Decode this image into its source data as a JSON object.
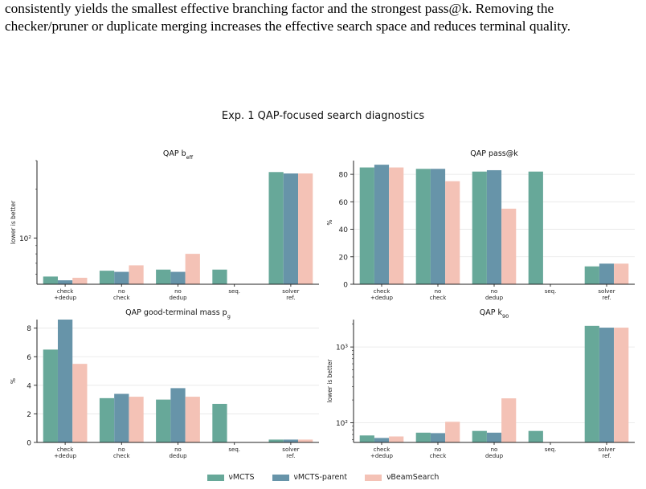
{
  "page_text": {
    "line1": "consistently yields the smallest effective branching factor and the strongest pass@k. Removing the",
    "line2": "checker/pruner or duplicate merging increases the effective search space and reduces terminal quality."
  },
  "figure": {
    "suptitle": "Exp. 1 QAP-focused search diagnostics"
  },
  "legend": [
    {
      "name": "νMCTS",
      "color": "#67a899"
    },
    {
      "name": "νMCTS-parent",
      "color": "#6794a9"
    },
    {
      "name": "νBeamSearch",
      "color": "#f4c2b6"
    }
  ],
  "chart_data": [
    {
      "type": "bar",
      "title": "QAP b_eff",
      "title_main": "QAP b",
      "title_sub": "eff",
      "ylabel": "lower is better",
      "yscale": "log",
      "ylim": [
        52,
        300
      ],
      "yticks": [
        100
      ],
      "ytick_labels": [
        "10²"
      ],
      "categories": [
        "check\n+dedup",
        "no\ncheck",
        "no\ndedup",
        "seq.",
        "solver\nref."
      ],
      "series": [
        {
          "name": "νMCTS",
          "values": [
            58,
            63,
            64,
            64,
            255
          ]
        },
        {
          "name": "νMCTS-parent",
          "values": [
            55,
            62,
            62,
            null,
            250
          ]
        },
        {
          "name": "νBeamSearch",
          "values": [
            57,
            68,
            80,
            null,
            250
          ]
        }
      ],
      "grid": false
    },
    {
      "type": "bar",
      "title": "QAP pass@k",
      "ylabel": "%",
      "yscale": "linear",
      "ylim": [
        0,
        90
      ],
      "yticks": [
        0,
        20,
        40,
        60,
        80
      ],
      "ytick_labels": [
        "0",
        "20",
        "40",
        "60",
        "80"
      ],
      "categories": [
        "check\n+dedup",
        "no\ncheck",
        "no\ndedup",
        "seq.",
        "solver\nref."
      ],
      "series": [
        {
          "name": "νMCTS",
          "values": [
            85,
            84,
            82,
            82,
            13
          ]
        },
        {
          "name": "νMCTS-parent",
          "values": [
            87,
            84,
            83,
            null,
            15
          ]
        },
        {
          "name": "νBeamSearch",
          "values": [
            85,
            75,
            55,
            null,
            15
          ]
        }
      ],
      "grid": true
    },
    {
      "type": "bar",
      "title": "QAP good-terminal mass p_g",
      "title_main": "QAP good-terminal mass p",
      "title_sub": "g",
      "ylabel": "%",
      "yscale": "linear",
      "ylim": [
        0,
        8.6
      ],
      "yticks": [
        0,
        2,
        4,
        6,
        8
      ],
      "ytick_labels": [
        "0",
        "2",
        "4",
        "6",
        "8"
      ],
      "categories": [
        "check\n+dedup",
        "no\ncheck",
        "no\ndedup",
        "seq.",
        "solver\nref."
      ],
      "series": [
        {
          "name": "νMCTS",
          "values": [
            6.5,
            3.1,
            3.0,
            2.7,
            0.2
          ]
        },
        {
          "name": "νMCTS-parent",
          "values": [
            8.6,
            3.4,
            3.8,
            null,
            0.2
          ]
        },
        {
          "name": "νBeamSearch",
          "values": [
            5.5,
            3.2,
            3.2,
            null,
            0.2
          ]
        }
      ],
      "grid": true
    },
    {
      "type": "bar",
      "title": "QAP k_90",
      "title_main": "QAP k",
      "title_sub": "90",
      "ylabel": "lower is better",
      "yscale": "log",
      "ylim": [
        55,
        2300
      ],
      "yticks": [
        100,
        1000
      ],
      "ytick_labels": [
        "10²",
        "10³"
      ],
      "categories": [
        "check\n+dedup",
        "no\ncheck",
        "no\ndedup",
        "seq.",
        "solver\nref."
      ],
      "series": [
        {
          "name": "νMCTS",
          "values": [
            68,
            74,
            78,
            78,
            1900
          ]
        },
        {
          "name": "νMCTS-parent",
          "values": [
            63,
            73,
            74,
            null,
            1800
          ]
        },
        {
          "name": "νBeamSearch",
          "values": [
            66,
            103,
            210,
            null,
            1800
          ]
        }
      ],
      "grid": true
    }
  ]
}
